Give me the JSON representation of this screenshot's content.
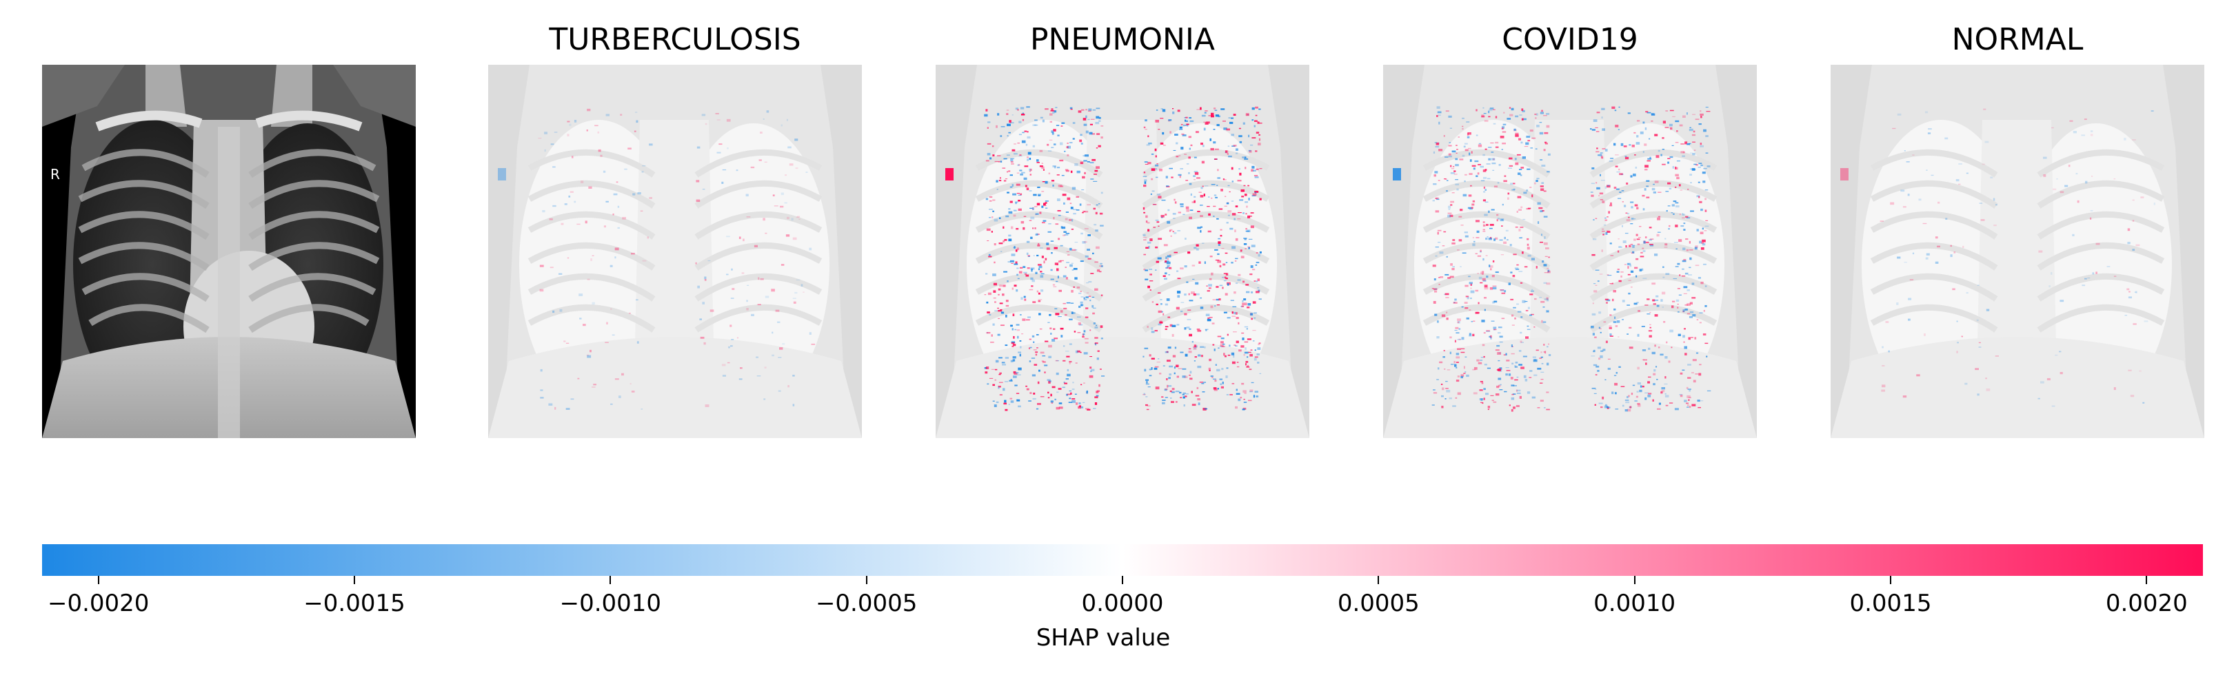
{
  "chart_data": {
    "type": "heatmap",
    "description_panels": [
      {
        "title": "",
        "kind": "xray"
      },
      {
        "title": "TURBERCULOSIS",
        "kind": "shap",
        "intensity": 0.15
      },
      {
        "title": "PNEUMONIA",
        "kind": "shap",
        "intensity": 1.0
      },
      {
        "title": "COVID19",
        "kind": "shap",
        "intensity": 0.85
      },
      {
        "title": "NORMAL",
        "kind": "shap",
        "intensity": 0.1
      }
    ],
    "colorbar": {
      "label": "SHAP value",
      "vmin": -0.00211,
      "vmax": 0.00211,
      "ticks": [
        -0.002,
        -0.0015,
        -0.001,
        -0.0005,
        0.0,
        0.0005,
        0.001,
        0.0015,
        0.002
      ],
      "tick_labels": [
        "−0.0020",
        "−0.0015",
        "−0.0010",
        "−0.0005",
        "0.0000",
        "0.0005",
        "0.0010",
        "0.0015",
        "0.0020"
      ],
      "negative_color": "#1e88e5",
      "positive_color": "#ff0d57"
    },
    "xray_marker": "R"
  }
}
